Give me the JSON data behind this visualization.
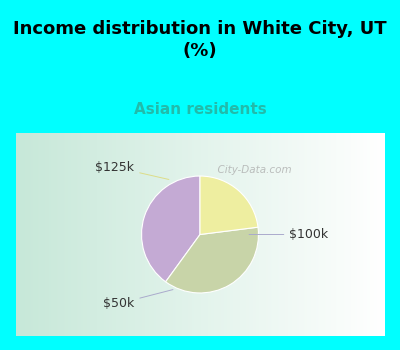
{
  "title": "Income distribution in White City, UT\n(%)",
  "subtitle": "Asian residents",
  "slices": [
    {
      "label": "$100k",
      "value": 40,
      "color": "#c4aad4"
    },
    {
      "label": "$50k",
      "value": 37,
      "color": "#c8d4a8"
    },
    {
      "label": "$125k",
      "value": 23,
      "color": "#eeeea0"
    }
  ],
  "title_fontsize": 13,
  "subtitle_fontsize": 11,
  "subtitle_color": "#22bbaa",
  "title_color": "#000000",
  "bg_color": "#00ffff",
  "label_fontsize": 9,
  "startangle": 90,
  "watermark": "  City-Data.com",
  "chart_bg_colors": [
    "#c0e8d8",
    "#d8f0e8",
    "#eef8f4",
    "#f8fffc"
  ],
  "label_color": "#333333",
  "line_color": "#aaaacc"
}
